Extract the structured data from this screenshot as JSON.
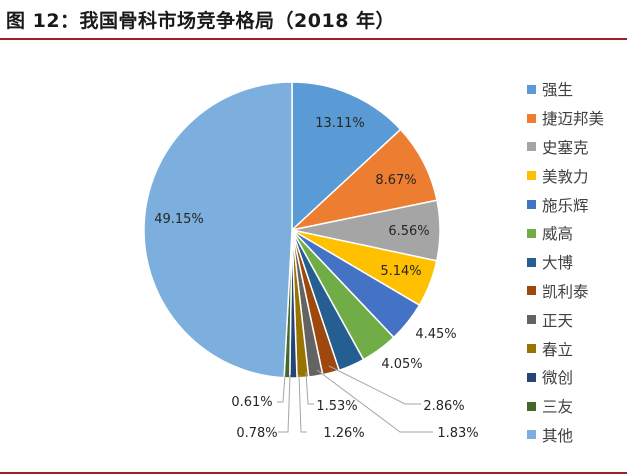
{
  "title": "图 12：我国骨科市场竞争格局（2018 年）",
  "chart_data": {
    "type": "pie",
    "title": "图 12：我国骨科市场竞争格局（2018 年）",
    "legend_position": "right",
    "slices": [
      {
        "label": "强生",
        "value": 13.11,
        "display": "13.11%",
        "color": "#5b9bd5"
      },
      {
        "label": "捷迈邦美",
        "value": 8.67,
        "display": "8.67%",
        "color": "#ed7d31"
      },
      {
        "label": "史塞克",
        "value": 6.56,
        "display": "6.56%",
        "color": "#a5a5a5"
      },
      {
        "label": "美敦力",
        "value": 5.14,
        "display": "5.14%",
        "color": "#ffc000"
      },
      {
        "label": "施乐辉",
        "value": 4.45,
        "display": "4.45%",
        "color": "#4472c4"
      },
      {
        "label": "威高",
        "value": 4.05,
        "display": "4.05%",
        "color": "#70ad47"
      },
      {
        "label": "大博",
        "value": 2.86,
        "display": "2.86%",
        "color": "#255e91"
      },
      {
        "label": "凯利泰",
        "value": 1.83,
        "display": "1.83%",
        "color": "#9e480e"
      },
      {
        "label": "正天",
        "value": 1.53,
        "display": "1.53%",
        "color": "#636363"
      },
      {
        "label": "春立",
        "value": 1.26,
        "display": "1.26%",
        "color": "#997300"
      },
      {
        "label": "微创",
        "value": 0.78,
        "display": "0.78%",
        "color": "#264478"
      },
      {
        "label": "三友",
        "value": 0.61,
        "display": "0.61%",
        "color": "#43682b"
      },
      {
        "label": "其他",
        "value": 49.15,
        "display": "49.15%",
        "color": "#7cafdd"
      }
    ]
  }
}
